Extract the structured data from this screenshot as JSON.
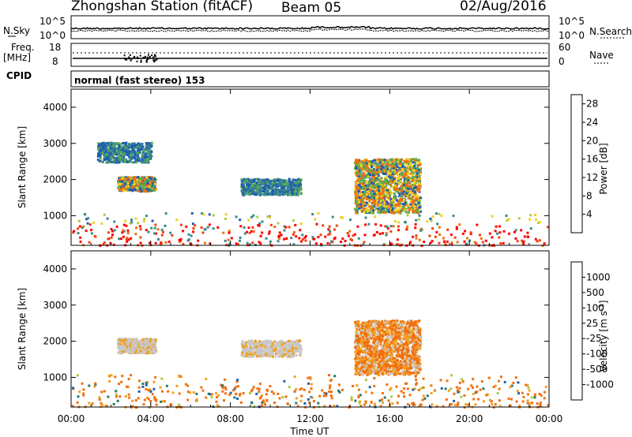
{
  "header": {
    "station": "Zhongshan Station (fitACF)",
    "beam": "Beam 05",
    "date": "02/Aug/2016"
  },
  "noise_panel": {
    "left_label": "N.Sky",
    "left_ticks": [
      "10^5",
      "10^0"
    ],
    "right_label": "N.Search",
    "right_ticks": [
      "10^5",
      "10^0"
    ]
  },
  "freq_panel": {
    "left_label_1": "Freq.",
    "left_label_2": "[MHz]",
    "left_ticks": [
      "18",
      "8"
    ],
    "right_label": "Nave",
    "right_ticks": [
      "60",
      "0"
    ]
  },
  "cpid_panel": {
    "label": "CPID",
    "text": "normal (fast stereo) 153"
  },
  "x_axis": {
    "label": "Time UT",
    "ticks": [
      "00:00",
      "04:00",
      "08:00",
      "12:00",
      "16:00",
      "20:00",
      "00:00"
    ]
  },
  "chart_data": [
    {
      "type": "heatmap",
      "title": "",
      "xlabel": "Time UT",
      "ylabel": "Slant Range [km]",
      "xlim": [
        "00:00",
        "24:00"
      ],
      "ylim": [
        180,
        4500
      ],
      "y_ticks": [
        "1000",
        "2000",
        "3000",
        "4000"
      ],
      "colorbar": {
        "label": "Power [dB]",
        "ticks": [
          "4",
          "8",
          "12",
          "16",
          "20",
          "24",
          "28"
        ],
        "range": [
          0,
          30
        ],
        "colors": [
          "#1a1aff",
          "#1f5fb0",
          "#3a8a8a",
          "#5aaa50",
          "#a8d040",
          "#f0d020",
          "#f0a020",
          "#f07010",
          "#f04010",
          "#ff0000"
        ]
      },
      "echo_regions": [
        {
          "t_start": 0.0,
          "t_end": 24.0,
          "r_start": 200,
          "r_end": 1100,
          "level": "strong"
        },
        {
          "t_start": 2.3,
          "t_end": 4.2,
          "r_start": 1700,
          "r_end": 2100,
          "level": "medium"
        },
        {
          "t_start": 8.5,
          "t_end": 11.5,
          "r_start": 1600,
          "r_end": 2050,
          "level": "weak"
        },
        {
          "t_start": 14.2,
          "t_end": 17.5,
          "r_start": 1100,
          "r_end": 2600,
          "level": "medium"
        },
        {
          "t_start": 1.3,
          "t_end": 4.0,
          "r_start": 2500,
          "r_end": 3050,
          "level": "weak"
        }
      ]
    },
    {
      "type": "heatmap",
      "title": "",
      "xlabel": "Time UT",
      "ylabel": "Slant Range [km]",
      "xlim": [
        "00:00",
        "24:00"
      ],
      "ylim": [
        180,
        4500
      ],
      "y_ticks": [
        "1000",
        "2000",
        "3000",
        "4000"
      ],
      "colorbar": {
        "label": "Velocity [m s^-1]",
        "ticks": [
          "1000",
          "500",
          "100",
          "25",
          "-25",
          "-100",
          "-500",
          "-1000"
        ],
        "range": [
          -1200,
          1200
        ],
        "colors": [
          "#ff0000",
          "#f04010",
          "#f07010",
          "#f0a020",
          "#c8c8c8",
          "#c8c8c8",
          "#a0d040",
          "#3aaa3a",
          "#2a7a6a",
          "#2060b0",
          "#1a30c0"
        ]
      },
      "echo_regions": [
        {
          "t_start": 0.0,
          "t_end": 24.0,
          "r_start": 200,
          "r_end": 1100,
          "velocity": "mostly -100 to -500"
        },
        {
          "t_start": 2.3,
          "t_end": 4.2,
          "r_start": 1700,
          "r_end": 2100,
          "velocity": "near 0"
        },
        {
          "t_start": 8.5,
          "t_end": 11.5,
          "r_start": 1600,
          "r_end": 2050,
          "velocity": "near 0"
        },
        {
          "t_start": 14.2,
          "t_end": 17.5,
          "r_start": 1100,
          "r_end": 2600,
          "velocity": "-100 to -500"
        }
      ]
    }
  ]
}
